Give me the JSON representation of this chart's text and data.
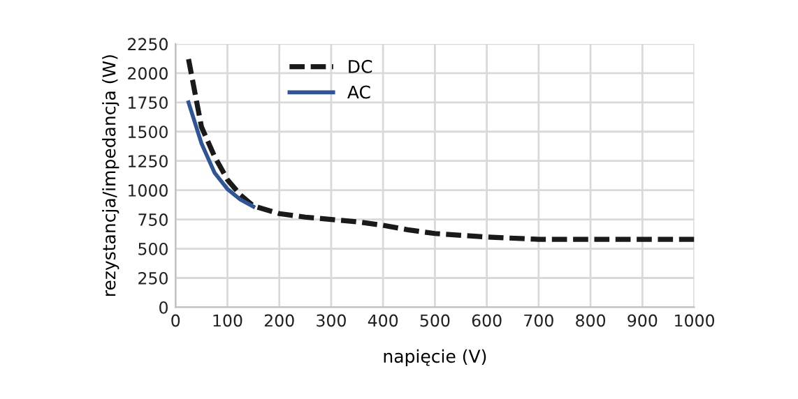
{
  "chart_data": {
    "type": "line",
    "xlabel": "napięcie (V)",
    "ylabel": "rezystancja/impedancja (W)",
    "xlim": [
      0,
      1000
    ],
    "xticks": [
      0,
      100,
      200,
      300,
      400,
      500,
      600,
      700,
      800,
      900,
      1000
    ],
    "ylim": [
      0,
      2250
    ],
    "yticks": [
      0,
      250,
      500,
      750,
      1000,
      1250,
      1500,
      1750,
      2000,
      2250
    ],
    "grid": true,
    "legend": "top",
    "marker": "none",
    "series": [
      {
        "name": "DC",
        "color": "#1a1a1a",
        "line_style": "dashed",
        "x": [
          25,
          50,
          75,
          100,
          125,
          150,
          200,
          250,
          300,
          350,
          400,
          450,
          500,
          600,
          700,
          800,
          900,
          1000
        ],
        "values": [
          2120,
          1540,
          1290,
          1090,
          960,
          865,
          800,
          770,
          750,
          730,
          700,
          660,
          630,
          600,
          580,
          580,
          580,
          580
        ]
      },
      {
        "name": "AC",
        "color": "#2e5597",
        "line_style": "solid",
        "x": [
          25,
          50,
          75,
          100,
          125,
          150
        ],
        "values": [
          1750,
          1400,
          1150,
          1010,
          920,
          860
        ]
      }
    ]
  }
}
